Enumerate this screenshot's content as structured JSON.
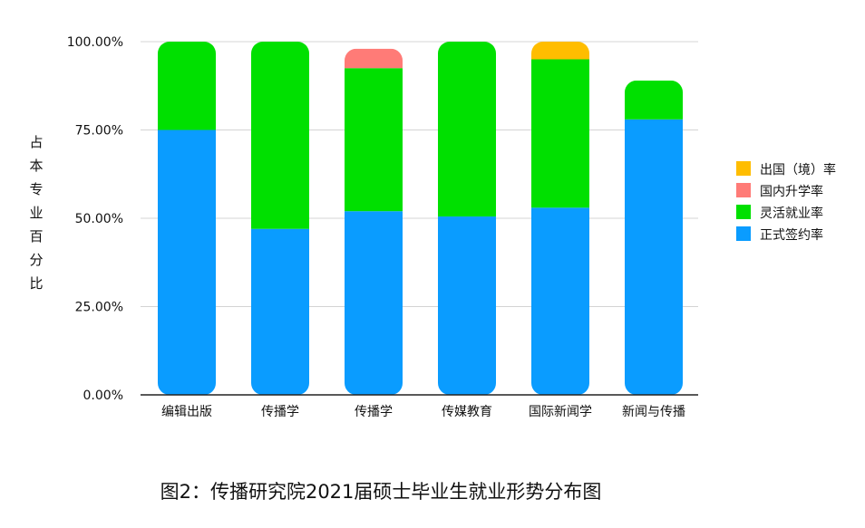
{
  "chart_data": {
    "type": "bar",
    "stacked": true,
    "categories": [
      "编辑出版",
      "传播学",
      "传播学",
      "传媒教育",
      "国际新闻学",
      "新闻与传播"
    ],
    "series": [
      {
        "name": "正式签约率",
        "color": "#0a9cff",
        "values": [
          75.0,
          47.0,
          52.0,
          50.5,
          53.0,
          78.0
        ]
      },
      {
        "name": "灵活就业率",
        "color": "#00e000",
        "values": [
          25.0,
          53.0,
          40.5,
          49.5,
          42.0,
          11.0
        ]
      },
      {
        "name": "国内升学率",
        "color": "#ff7b77",
        "values": [
          0,
          0,
          5.5,
          0,
          0,
          0
        ]
      },
      {
        "name": "出国（境）率",
        "color": "#ffbd00",
        "values": [
          0,
          0,
          0,
          0,
          5.0,
          0
        ]
      }
    ],
    "yticks": [
      "0.00%",
      "25.00%",
      "50.00%",
      "75.00%",
      "100.00%"
    ],
    "ylim": [
      0,
      100
    ],
    "ylabel": "占本专业百分比",
    "legend_position": "right",
    "grid": true
  },
  "caption": "图2：传播研究院2021届硕士毕业生就业形势分布图"
}
